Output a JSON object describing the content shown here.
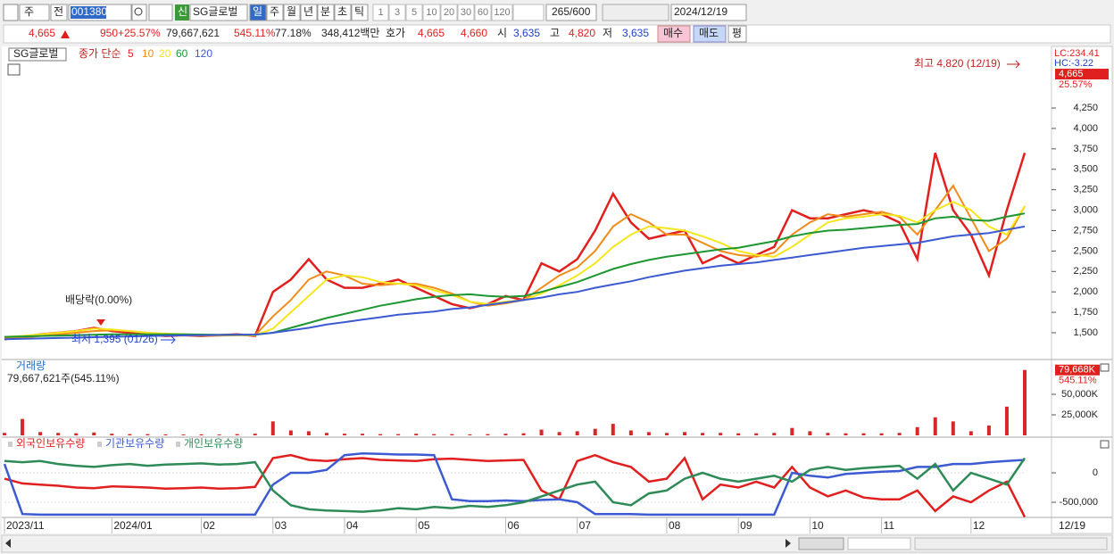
{
  "toolbar": {
    "market": "주",
    "prev": "전",
    "code": "001380",
    "badge": "신",
    "name": "SG글로벌",
    "periods": [
      "일",
      "주",
      "월",
      "년",
      "분",
      "초",
      "틱"
    ],
    "intervals": [
      "1",
      "3",
      "5",
      "10",
      "20",
      "30",
      "60",
      "120"
    ],
    "count": "265/600",
    "date": "2024/12/19"
  },
  "quote": {
    "price": "4,665",
    "change": "950",
    "rate": "+25.57%",
    "volume": "79,667,621",
    "volume_rate": "545.11%",
    "turnover": "77.18%",
    "amount": "348,412백만",
    "ask_label": "호가",
    "ask": "4,665",
    "bid": "4,660",
    "open_label": "시",
    "open": "3,635",
    "high_label": "고",
    "high": "4,820",
    "low_label": "저",
    "low": "3,635",
    "buy": "매수",
    "sell": "매도",
    "eval": "평"
  },
  "chart_data": [
    {
      "type": "line",
      "legend_title": "SG글로벌",
      "legend_prefix": "종가 단순",
      "categories": [
        "2023/11",
        null,
        null,
        null,
        null,
        null,
        "2024/01",
        null,
        null,
        null,
        null,
        "02",
        null,
        null,
        null,
        "03",
        null,
        null,
        null,
        "04",
        null,
        null,
        null,
        "05",
        null,
        null,
        null,
        null,
        "06",
        null,
        null,
        null,
        "07",
        null,
        null,
        null,
        null,
        "08",
        null,
        null,
        null,
        "09",
        null,
        null,
        null,
        "10",
        null,
        null,
        null,
        "11",
        null,
        null,
        null,
        null,
        "12",
        null,
        null,
        null
      ],
      "last_date": "12/19",
      "series": [
        {
          "name": "5",
          "color": "#e0201e",
          "values": [
            1420,
            1450,
            1480,
            1500,
            1520,
            1560,
            1520,
            1500,
            1480,
            1460,
            1470,
            1460,
            1470,
            1480,
            1460,
            2000,
            2150,
            2400,
            2150,
            2050,
            2050,
            2100,
            2150,
            2050,
            1950,
            1850,
            1800,
            1850,
            1950,
            1900,
            2350,
            2250,
            2400,
            2750,
            3200,
            2850,
            2650,
            2700,
            2750,
            2350,
            2450,
            2350,
            2450,
            2550,
            3000,
            2900,
            2900,
            2950,
            3000,
            2950,
            2850,
            2400,
            3700,
            3000,
            2700,
            2200,
            3000,
            3700
          ]
        },
        {
          "name": "10",
          "color": "#f08c1a",
          "values": [
            1430,
            1440,
            1460,
            1480,
            1500,
            1520,
            1530,
            1520,
            1500,
            1480,
            1470,
            1465,
            1465,
            1470,
            1470,
            1700,
            1900,
            2150,
            2250,
            2200,
            2100,
            2080,
            2100,
            2100,
            2050,
            1980,
            1880,
            1830,
            1860,
            1900,
            2050,
            2200,
            2300,
            2500,
            2800,
            2950,
            2850,
            2700,
            2700,
            2600,
            2500,
            2450,
            2430,
            2480,
            2700,
            2850,
            2950,
            2920,
            2950,
            2980,
            2920,
            2700,
            3000,
            3300,
            2900,
            2500,
            2650,
            3050
          ]
        },
        {
          "name": "20",
          "color": "#f5e61e",
          "values": [
            1450,
            1460,
            1480,
            1500,
            1520,
            1550,
            1540,
            1520,
            1500,
            1490,
            1480,
            1475,
            1470,
            1470,
            1470,
            1550,
            1750,
            1950,
            2150,
            2200,
            2180,
            2120,
            2100,
            2080,
            2020,
            1960,
            1880,
            1850,
            1880,
            1900,
            1980,
            2080,
            2200,
            2350,
            2550,
            2700,
            2800,
            2780,
            2750,
            2680,
            2600,
            2500,
            2450,
            2430,
            2550,
            2700,
            2850,
            2900,
            2920,
            2950,
            2930,
            2850,
            3000,
            3100,
            3000,
            2800,
            2700,
            3050
          ]
        },
        {
          "name": "60",
          "color": "#1e9632",
          "values": [
            1450,
            1455,
            1460,
            1465,
            1470,
            1475,
            1480,
            1480,
            1480,
            1480,
            1480,
            1478,
            1476,
            1475,
            1475,
            1500,
            1560,
            1620,
            1680,
            1730,
            1780,
            1830,
            1870,
            1910,
            1940,
            1960,
            1970,
            1950,
            1940,
            1950,
            2000,
            2060,
            2120,
            2200,
            2280,
            2340,
            2390,
            2430,
            2460,
            2490,
            2520,
            2540,
            2580,
            2620,
            2680,
            2720,
            2750,
            2760,
            2780,
            2800,
            2820,
            2830,
            2900,
            2920,
            2880,
            2870,
            2920,
            2960
          ]
        },
        {
          "name": "120",
          "color": "#3c5ad2",
          "values": [
            1420,
            1425,
            1430,
            1435,
            1440,
            1445,
            1450,
            1455,
            1460,
            1465,
            1468,
            1470,
            1472,
            1475,
            1478,
            1500,
            1530,
            1560,
            1600,
            1630,
            1660,
            1690,
            1720,
            1740,
            1760,
            1790,
            1810,
            1840,
            1870,
            1900,
            1930,
            1970,
            2000,
            2050,
            2090,
            2130,
            2180,
            2220,
            2260,
            2290,
            2320,
            2340,
            2360,
            2390,
            2420,
            2450,
            2480,
            2510,
            2540,
            2560,
            2580,
            2600,
            2640,
            2680,
            2700,
            2720,
            2760,
            2800
          ]
        }
      ],
      "ylim": [
        1205,
        4971
      ],
      "yticks": [
        {
          "value": 1500,
          "label": "1,500"
        },
        {
          "value": 1750,
          "label": "1,750"
        },
        {
          "value": 2000,
          "label": "2,000"
        },
        {
          "value": 2250,
          "label": "2,250"
        },
        {
          "value": 2500,
          "label": "2,500"
        },
        {
          "value": 2750,
          "label": "2,750"
        },
        {
          "value": 3000,
          "label": "3,000"
        },
        {
          "value": 3250,
          "label": "3,250"
        },
        {
          "value": 3500,
          "label": "3,500"
        },
        {
          "value": 3750,
          "label": "3,750"
        },
        {
          "value": 4000,
          "label": "4,000"
        },
        {
          "value": 4250,
          "label": "4,250"
        }
      ],
      "last_price": {
        "value": 4665,
        "label": "4,665"
      },
      "last_rate": "25.57%",
      "lc": "LC:234.41",
      "hc": "HC:-3.22",
      "high_note": "최고 4,820 (12/19)",
      "low_note": "최저 1,395 (01/26)",
      "dividend_note": "배당락(0.00%)"
    },
    {
      "type": "bar",
      "title": "거래량",
      "subtitle": "79,667,621주(545.11%)",
      "color": "#d62828",
      "values": [
        3000,
        20000,
        4000,
        3000,
        2500,
        3500,
        2000,
        1500,
        1500,
        1200,
        1000,
        1200,
        1000,
        1500,
        2000,
        17000,
        6000,
        5000,
        3000,
        2000,
        2000,
        1500,
        1500,
        2000,
        1500,
        1500,
        1200,
        1500,
        2000,
        2500,
        7000,
        4000,
        5000,
        8000,
        14000,
        6000,
        4000,
        3000,
        4000,
        3000,
        3000,
        2500,
        2500,
        3000,
        9000,
        5000,
        3000,
        2500,
        2500,
        2500,
        3000,
        10000,
        22000,
        17000,
        5000,
        12000,
        35000,
        79668
      ],
      "ylim": [
        0,
        87000
      ],
      "yticks": [
        {
          "value": 25000,
          "label": "25,000K"
        },
        {
          "value": 50000,
          "label": "50,000K"
        }
      ],
      "last_value": {
        "value": 79668,
        "label": "79,668K"
      },
      "last_rate": "545.11%"
    },
    {
      "type": "line",
      "series": [
        {
          "name": "외국인보유수량",
          "color": "#e0201e",
          "values": [
            -100000,
            -180000,
            -200000,
            -220000,
            -250000,
            -260000,
            -230000,
            -240000,
            -250000,
            -270000,
            -260000,
            -250000,
            -270000,
            -260000,
            -240000,
            250000,
            300000,
            220000,
            200000,
            230000,
            250000,
            220000,
            210000,
            200000,
            230000,
            240000,
            220000,
            200000,
            210000,
            220000,
            -300000,
            -450000,
            200000,
            300000,
            180000,
            100000,
            -150000,
            -100000,
            250000,
            -450000,
            -200000,
            -250000,
            -150000,
            -250000,
            100000,
            -250000,
            -400000,
            -300000,
            -420000,
            -450000,
            -450000,
            -300000,
            -650000,
            -400000,
            -500000,
            -300000,
            -150000,
            -750000
          ]
        },
        {
          "name": "기관보유수량",
          "color": "#3c5ad2",
          "values": [
            150000,
            -700000,
            -710000,
            -710000,
            -710000,
            -710000,
            -710000,
            -710000,
            -710000,
            -710000,
            -710000,
            -710000,
            -710000,
            -710000,
            -710000,
            -200000,
            0,
            0,
            50000,
            300000,
            330000,
            320000,
            310000,
            310000,
            300000,
            -450000,
            -480000,
            -480000,
            -470000,
            -480000,
            -460000,
            -450000,
            -500000,
            -700000,
            -700000,
            -700000,
            -710000,
            -710000,
            -710000,
            -710000,
            -710000,
            -710000,
            -710000,
            -710000,
            0,
            -50000,
            -80000,
            -20000,
            0,
            20000,
            30000,
            100000,
            100000,
            150000,
            150000,
            180000,
            200000,
            220000
          ]
        },
        {
          "name": "개인보유수량",
          "color": "#2e8b57",
          "values": [
            200000,
            180000,
            200000,
            150000,
            120000,
            100000,
            130000,
            150000,
            120000,
            140000,
            150000,
            160000,
            140000,
            150000,
            180000,
            -300000,
            -550000,
            -620000,
            -640000,
            -650000,
            -660000,
            -640000,
            -600000,
            -620000,
            -580000,
            -600000,
            -560000,
            -580000,
            -550000,
            -500000,
            -400000,
            -300000,
            -200000,
            -150000,
            -500000,
            -550000,
            -350000,
            -300000,
            -100000,
            0,
            -100000,
            -150000,
            -100000,
            -50000,
            -150000,
            50000,
            100000,
            50000,
            80000,
            100000,
            120000,
            -100000,
            150000,
            -300000,
            0,
            -100000,
            -200000,
            250000
          ]
        }
      ],
      "ylim": [
        -757000,
        575000
      ],
      "yticks": [
        0,
        {
          "value": -500000,
          "label": "-500,000"
        }
      ]
    }
  ]
}
